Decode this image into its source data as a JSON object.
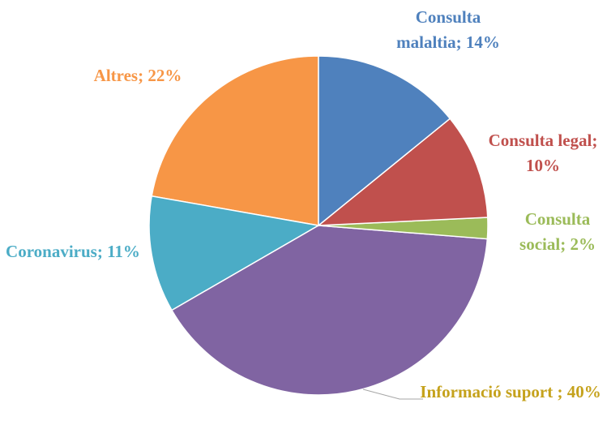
{
  "chart_data": {
    "type": "pie",
    "categories": [
      "Consulta malaltia;",
      "Consulta legal;",
      "Consulta social;",
      "Informació suport",
      "Coronavirus;",
      "Altres;"
    ],
    "values": [
      14,
      10,
      2,
      40,
      11,
      22
    ],
    "value_labels": [
      "14%",
      "10%",
      "2%",
      "; 40%",
      "11%",
      "22%"
    ],
    "colors": [
      "#4f81bd",
      "#c0504d",
      "#9bbb59",
      "#8064a2",
      "#4bacc6",
      "#f79646"
    ],
    "label_colors": [
      "#4f81bd",
      "#c0504d",
      "#9bbb59",
      "#c5a21c",
      "#4bacc6",
      "#f79646"
    ]
  }
}
